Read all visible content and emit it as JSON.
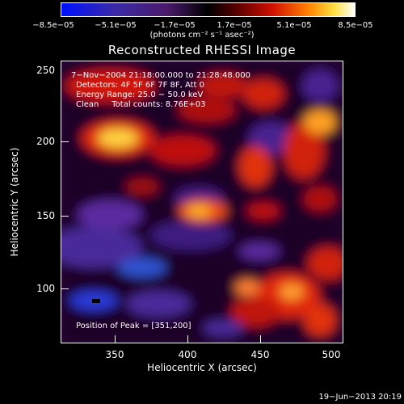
{
  "colorbar": {
    "ticks": [
      "−8.5e−05",
      "−5.1e−05",
      "−1.7e−05",
      "1.7e−05",
      "5.1e−05",
      "8.5e−05"
    ],
    "units": "(photons cm⁻² s⁻¹ asec⁻²)"
  },
  "title": "Reconstructed RHESSI Image",
  "info": {
    "time": "7−Nov−2004 21:18:00.000 to 21:28:48.000",
    "detectors": "Detectors: 4F 5F 6F 7F 8F, Att 0",
    "energy": "Energy Range: 25.0 − 50.0 keV",
    "clean": "Clean     Total counts: 8.76E+03",
    "peak": "Position of Peak = [351,200]"
  },
  "axes": {
    "xlabel": "Heliocentric X (arcsec)",
    "ylabel": "Heliocentric Y (arcsec)",
    "xticks": [
      "350",
      "400",
      "450",
      "500"
    ],
    "yticks": [
      "250",
      "200",
      "150",
      "100"
    ]
  },
  "stamp": "19−Jun−2013 20:19"
}
